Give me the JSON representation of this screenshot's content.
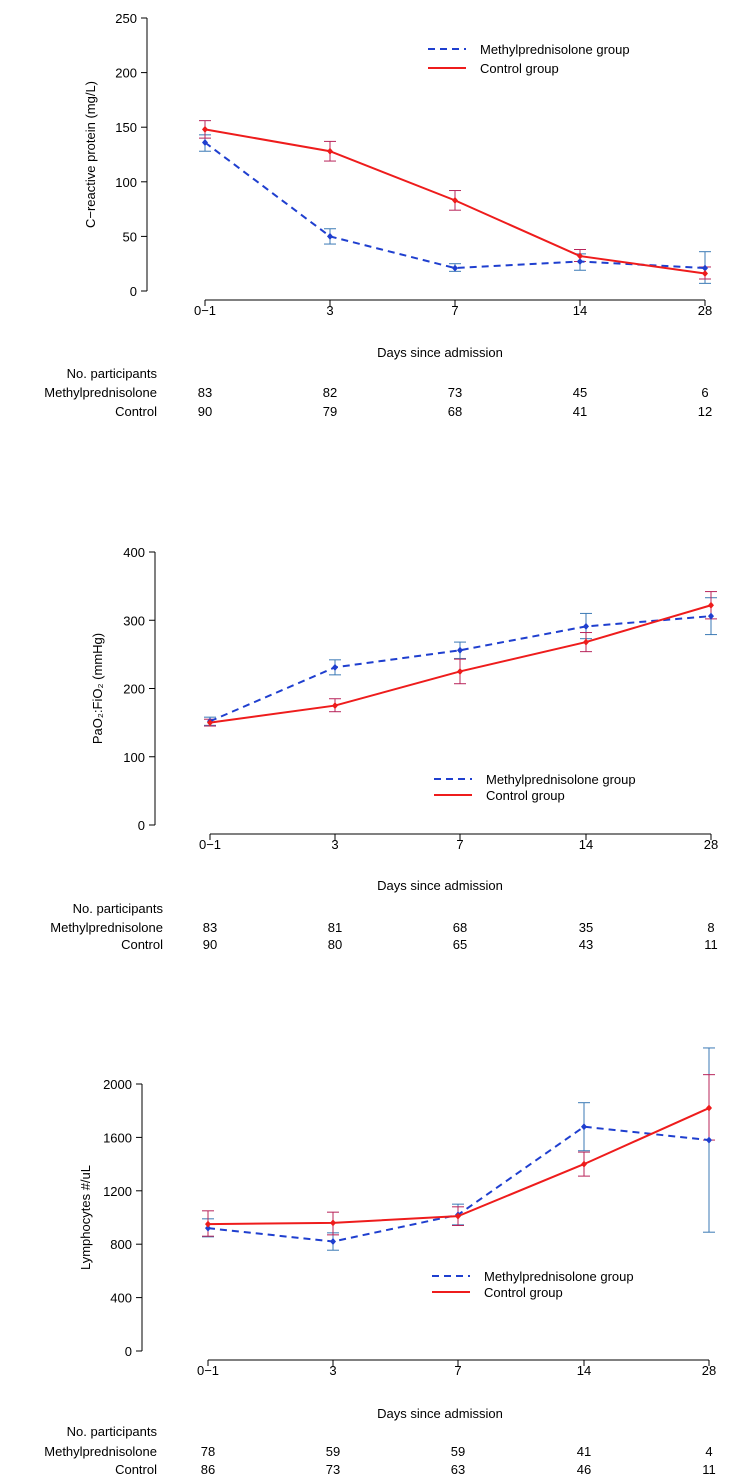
{
  "chart_data": [
    {
      "type": "line",
      "ylabel": "C−reactive protein (mg/L)",
      "xlabel": "Days since admission",
      "categories": [
        "0−1",
        "3",
        "7",
        "14",
        "28"
      ],
      "yticks": [
        0,
        50,
        100,
        150,
        200,
        250
      ],
      "ylim": [
        0,
        250
      ],
      "grid": false,
      "legend_position": "top-right",
      "series": [
        {
          "name": "Methylprednisolone group",
          "color": "#1f3fcf",
          "error_color": "#3b7ab5",
          "style": "dashed",
          "values": [
            136,
            50,
            21,
            27,
            21
          ],
          "err_low": [
            128,
            43,
            18,
            19,
            7
          ],
          "err_high": [
            143,
            57,
            25,
            34,
            36
          ]
        },
        {
          "name": "Control group",
          "color": "#ee1c1c",
          "error_color": "#b8245a",
          "style": "solid",
          "values": [
            148,
            128,
            83,
            32,
            16
          ],
          "err_low": [
            140,
            119,
            74,
            27,
            11
          ],
          "err_high": [
            156,
            137,
            92,
            38,
            22
          ]
        }
      ],
      "participants": {
        "header": "No. participants",
        "rows": [
          {
            "label": "Methylprednisolone",
            "values": [
              "83",
              "82",
              "73",
              "45",
              "6"
            ]
          },
          {
            "label": "Control",
            "values": [
              "90",
              "79",
              "68",
              "41",
              "12"
            ]
          }
        ]
      }
    },
    {
      "type": "line",
      "ylabel": "PaO₂:FiO₂ (mmHg)",
      "xlabel": "Days since admission",
      "categories": [
        "0−1",
        "3",
        "7",
        "14",
        "28"
      ],
      "yticks": [
        0,
        100,
        200,
        300,
        400
      ],
      "ylim": [
        0,
        400
      ],
      "grid": false,
      "legend_position": "bottom-right",
      "series": [
        {
          "name": "Methylprednisolone group",
          "color": "#1f3fcf",
          "error_color": "#3b7ab5",
          "style": "dashed",
          "values": [
            152,
            231,
            256,
            291,
            306
          ],
          "err_low": [
            146,
            220,
            244,
            273,
            279
          ],
          "err_high": [
            158,
            242,
            268,
            310,
            333
          ]
        },
        {
          "name": "Control group",
          "color": "#ee1c1c",
          "error_color": "#b8245a",
          "style": "solid",
          "values": [
            150,
            175,
            225,
            268,
            322
          ],
          "err_low": [
            145,
            166,
            207,
            254,
            302
          ],
          "err_high": [
            155,
            185,
            243,
            282,
            342
          ]
        }
      ],
      "participants": {
        "header": "No. participants",
        "rows": [
          {
            "label": "Methylprednisolone",
            "values": [
              "83",
              "81",
              "68",
              "35",
              "8"
            ]
          },
          {
            "label": "Control",
            "values": [
              "90",
              "80",
              "65",
              "43",
              "11"
            ]
          }
        ]
      }
    },
    {
      "type": "line",
      "ylabel": "Lymphocytes #/uL",
      "xlabel": "Days since admission",
      "categories": [
        "0−1",
        "3",
        "7",
        "14",
        "28"
      ],
      "yticks": [
        0,
        400,
        800,
        1200,
        1600,
        2000
      ],
      "ylim": [
        0,
        2000
      ],
      "grid": false,
      "legend_position": "bottom-right",
      "series": [
        {
          "name": "Methylprednisolone group",
          "color": "#1f3fcf",
          "error_color": "#3b7ab5",
          "style": "dashed",
          "values": [
            920,
            820,
            1020,
            1680,
            1580
          ],
          "err_low": [
            855,
            755,
            945,
            1500,
            890
          ],
          "err_high": [
            990,
            885,
            1100,
            1860,
            2270
          ]
        },
        {
          "name": "Control group",
          "color": "#ee1c1c",
          "error_color": "#b8245a",
          "style": "solid",
          "values": [
            950,
            960,
            1010,
            1400,
            1820
          ],
          "err_low": [
            860,
            870,
            940,
            1310,
            1580
          ],
          "err_high": [
            1050,
            1040,
            1080,
            1490,
            2070
          ]
        }
      ],
      "participants": {
        "header": "No. participants",
        "rows": [
          {
            "label": "Methylprednisolone",
            "values": [
              "78",
              "59",
              "59",
              "41",
              "4"
            ]
          },
          {
            "label": "Control",
            "values": [
              "86",
              "73",
              "63",
              "46",
              "11"
            ]
          }
        ]
      }
    }
  ]
}
